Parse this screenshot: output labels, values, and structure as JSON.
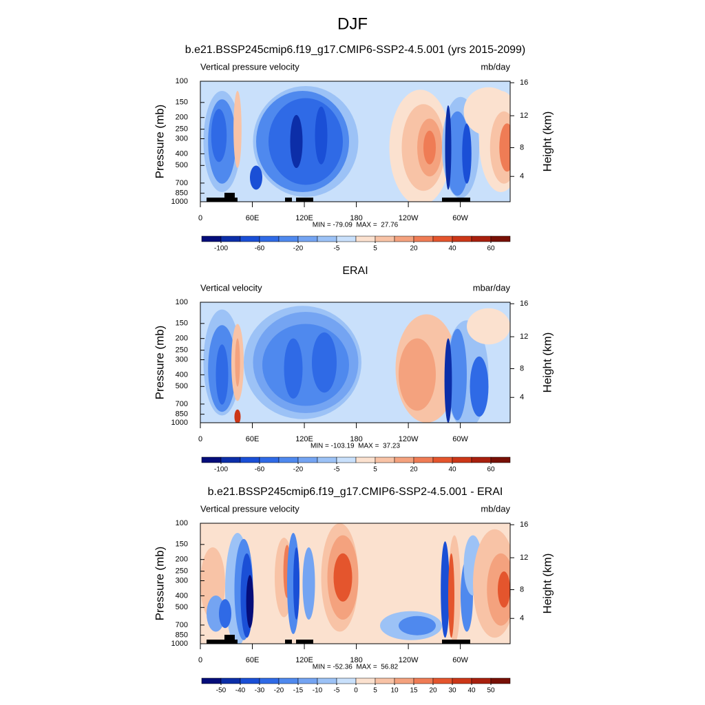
{
  "title": "DJF",
  "chart_data": [
    {
      "type": "contour",
      "title": "b.e21.BSSP245cmip6.f19_g17.CMIP6-SSP2-4.5.001 (yrs 2015-2099)",
      "left_label": "Vertical pressure velocity",
      "right_label": "mb/day",
      "ylabel": "Pressure (mb)",
      "y2label": "Height (km)",
      "log_y": true,
      "xlim": [
        0,
        357.5
      ],
      "xticks": [
        0,
        {
          "value": 60,
          "label": "60E"
        },
        {
          "value": 120,
          "label": "120E"
        },
        180,
        {
          "value": 240,
          "label": "120W"
        },
        {
          "value": 300,
          "label": "60W"
        }
      ],
      "ylim": [
        1000,
        100
      ],
      "yticks": [
        100,
        150,
        200,
        250,
        300,
        400,
        500,
        700,
        850,
        1000
      ],
      "y2ticks": [
        4,
        8,
        12,
        16
      ],
      "stats": "MIN = -79.09  MAX =  27.76",
      "colorbar": {
        "colors": [
          "#050d7a",
          "#0c2ea8",
          "#1a4fd6",
          "#2f6ae6",
          "#4f89ee",
          "#74a4f2",
          "#9cc2f6",
          "#c9e0fb",
          "#fbe1cf",
          "#f8c3a6",
          "#f4a27e",
          "#ef7c55",
          "#e4552d",
          "#cc3718",
          "#a8200e",
          "#781006"
        ],
        "ticks": [
          -100,
          -60,
          -20,
          -5,
          5,
          20,
          40,
          60
        ]
      }
    },
    {
      "type": "contour",
      "title": "ERAI",
      "left_label": "Vertical velocity",
      "right_label": "mbar/day",
      "ylabel": "Pressure (mb)",
      "y2label": "Height (km)",
      "log_y": true,
      "xlim": [
        0,
        357.5
      ],
      "xticks": [
        0,
        {
          "value": 60,
          "label": "60E"
        },
        {
          "value": 120,
          "label": "120E"
        },
        180,
        {
          "value": 240,
          "label": "120W"
        },
        {
          "value": 300,
          "label": "60W"
        }
      ],
      "ylim": [
        1000,
        100
      ],
      "yticks": [
        100,
        150,
        200,
        250,
        300,
        400,
        500,
        700,
        850,
        1000
      ],
      "y2ticks": [
        4,
        8,
        12,
        16
      ],
      "stats": "MIN = -103.19  MAX =  37.23",
      "colorbar": {
        "colors": [
          "#050d7a",
          "#0c2ea8",
          "#1a4fd6",
          "#2f6ae6",
          "#4f89ee",
          "#74a4f2",
          "#9cc2f6",
          "#c9e0fb",
          "#fbe1cf",
          "#f8c3a6",
          "#f4a27e",
          "#ef7c55",
          "#e4552d",
          "#cc3718",
          "#a8200e",
          "#781006"
        ],
        "ticks": [
          -100,
          -60,
          -20,
          -5,
          5,
          20,
          40,
          60
        ]
      }
    },
    {
      "type": "contour",
      "title": "b.e21.BSSP245cmip6.f19_g17.CMIP6-SSP2-4.5.001 - ERAI",
      "left_label": "Vertical pressure velocity",
      "right_label": "mb/day",
      "ylabel": "Pressure (mb)",
      "y2label": "Height (km)",
      "log_y": true,
      "xlim": [
        0,
        357.5
      ],
      "xticks": [
        0,
        {
          "value": 60,
          "label": "60E"
        },
        {
          "value": 120,
          "label": "120E"
        },
        180,
        {
          "value": 240,
          "label": "120W"
        },
        {
          "value": 300,
          "label": "60W"
        }
      ],
      "ylim": [
        1000,
        100
      ],
      "yticks": [
        100,
        150,
        200,
        250,
        300,
        400,
        500,
        700,
        850,
        1000
      ],
      "y2ticks": [
        4,
        8,
        12,
        16
      ],
      "stats": "MIN = -52.36  MAX =  56.82",
      "colorbar": {
        "colors": [
          "#050d7a",
          "#0c2ea8",
          "#1a4fd6",
          "#2f6ae6",
          "#4f89ee",
          "#74a4f2",
          "#9cc2f6",
          "#c9e0fb",
          "#fbe1cf",
          "#f8c3a6",
          "#f4a27e",
          "#ef7c55",
          "#e4552d",
          "#cc3718",
          "#a8200e",
          "#781006"
        ],
        "ticks": [
          -50,
          -40,
          -30,
          -20,
          -15,
          -10,
          -5,
          0,
          5,
          10,
          15,
          20,
          30,
          40,
          50
        ]
      }
    }
  ]
}
